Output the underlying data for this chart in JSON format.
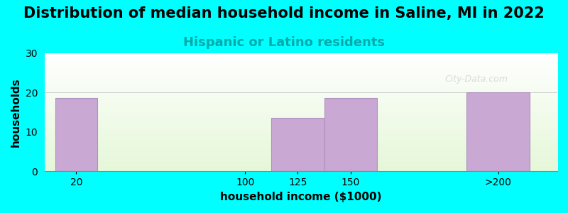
{
  "title": "Distribution of median household income in Saline, MI in 2022",
  "subtitle": "Hispanic or Latino residents",
  "xlabel": "household income ($1000)",
  "ylabel": "households",
  "background_color": "#00FFFF",
  "bar_color": "#C9A8D4",
  "bar_edge_color": "#B090C0",
  "categories": [
    "20",
    "100",
    "125",
    "150",
    ">200"
  ],
  "values": [
    18.5,
    0,
    13.5,
    18.5,
    20
  ],
  "bar_positions": [
    20,
    100,
    125,
    150,
    220
  ],
  "bar_widths": [
    20,
    5,
    25,
    25,
    30
  ],
  "ylim": [
    0,
    30
  ],
  "yticks": [
    0,
    10,
    20,
    30
  ],
  "title_fontsize": 15,
  "subtitle_fontsize": 13,
  "subtitle_color": "#00AAAA",
  "axis_label_fontsize": 11,
  "tick_fontsize": 10,
  "watermark": "City-Data.com",
  "plot_bg_gradient_top": "#FFFFFF",
  "plot_bg_gradient_bottom": "#E8F5E0"
}
